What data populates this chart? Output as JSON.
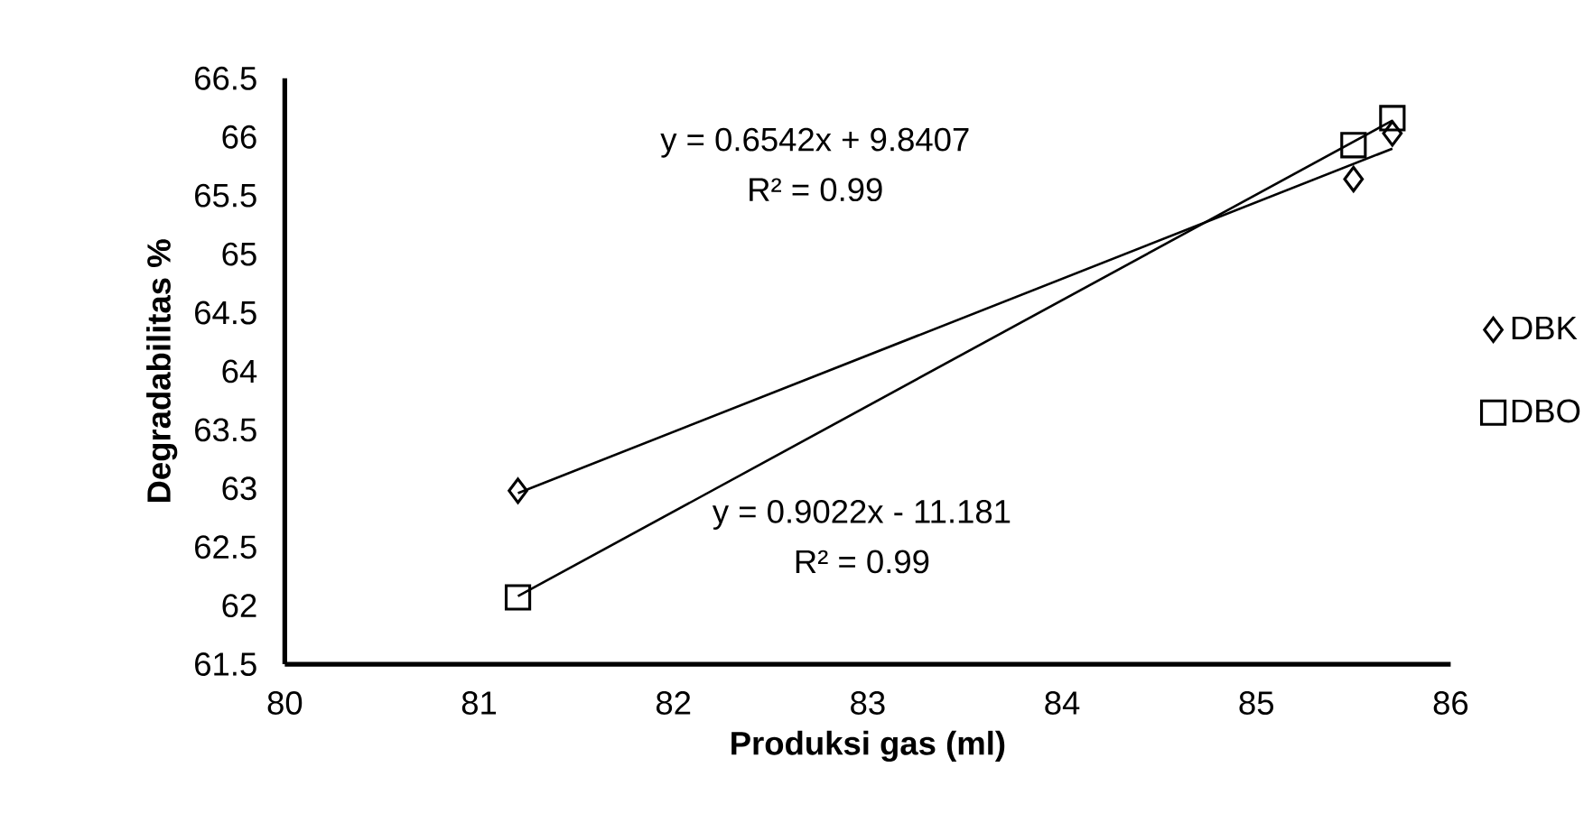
{
  "chart_data": {
    "type": "scatter",
    "xlabel": "Produksi gas (ml)",
    "ylabel": "Degradabilitas %",
    "xlim": [
      80,
      86
    ],
    "xticks": [
      80,
      81,
      82,
      83,
      84,
      85,
      86
    ],
    "ylim": [
      61.5,
      66.5
    ],
    "yticks": [
      61.5,
      62,
      62.5,
      63,
      63.5,
      64,
      64.5,
      65,
      65.5,
      66,
      66.5
    ],
    "grid": false,
    "legend": "right",
    "series": [
      {
        "name": "DBK",
        "color": "#000000",
        "marker": "diamond",
        "x": [
          81.2,
          85.5,
          85.7
        ],
        "values": [
          62.98,
          65.64,
          66.03
        ]
      },
      {
        "name": "DBO",
        "color": "#000000",
        "marker": "square",
        "x": [
          81.2,
          85.5,
          85.7
        ],
        "values": [
          62.07,
          65.93,
          66.16
        ]
      },
      {
        "type": "line",
        "color": "#000000",
        "marker": "none",
        "x": [
          81.2,
          85.7
        ],
        "values": [
          62.96,
          65.9
        ]
      },
      {
        "type": "line",
        "color": "#000000",
        "marker": "none",
        "x": [
          81.2,
          85.7
        ],
        "values": [
          62.08,
          66.14
        ]
      }
    ],
    "annotations": [
      "y = 0.6542x + 9.8407",
      "R² = 0.99",
      "y = 0.9022x - 11.181",
      "R² = 0.99"
    ]
  }
}
